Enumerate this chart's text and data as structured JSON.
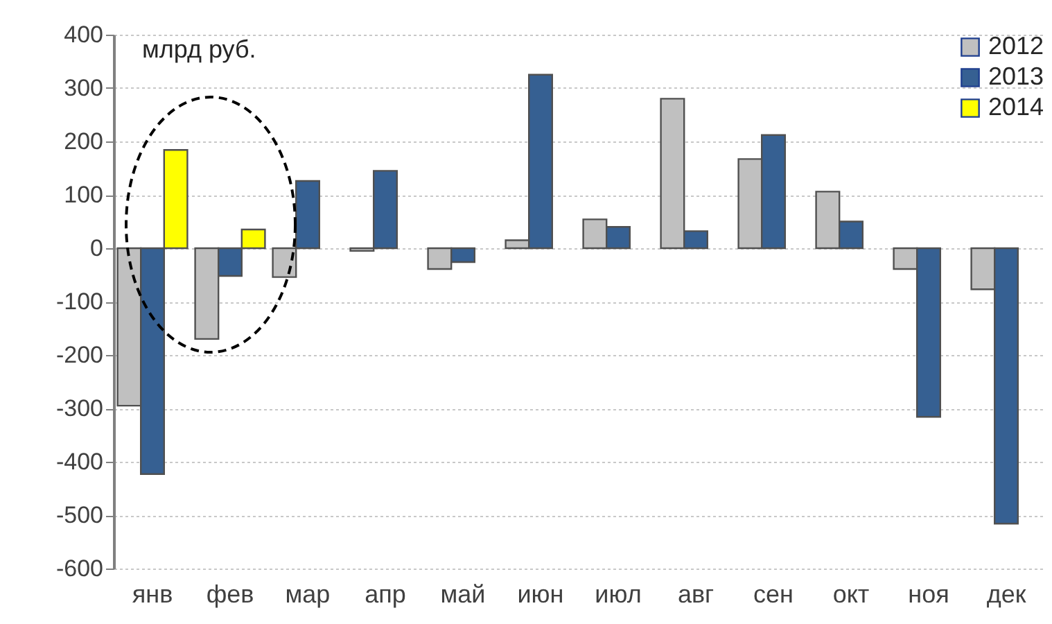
{
  "chart_data": {
    "type": "bar",
    "ylabel": "млрд руб.",
    "categories": [
      "янв",
      "фев",
      "мар",
      "апр",
      "май",
      "июн",
      "июл",
      "авг",
      "сен",
      "окт",
      "ноя",
      "дек"
    ],
    "series": [
      {
        "name": "2012",
        "color": "#c0c0c0",
        "values": [
          -295,
          -170,
          -54,
          -5,
          -39,
          15,
          54,
          280,
          167,
          106,
          -39,
          -77
        ]
      },
      {
        "name": "2013",
        "color": "#366092",
        "values": [
          -423,
          -52,
          126,
          145,
          -26,
          325,
          40,
          32,
          212,
          50,
          -316,
          -516
        ]
      },
      {
        "name": "2014",
        "color": "#ffff00",
        "values": [
          184,
          35,
          null,
          null,
          null,
          null,
          null,
          null,
          null,
          null,
          null,
          null
        ]
      }
    ],
    "ylim": [
      -600,
      400
    ],
    "yticks": [
      -600,
      -500,
      -400,
      -300,
      -200,
      -100,
      0,
      100,
      200,
      300,
      400
    ],
    "grid": "y",
    "legend": "top right"
  }
}
